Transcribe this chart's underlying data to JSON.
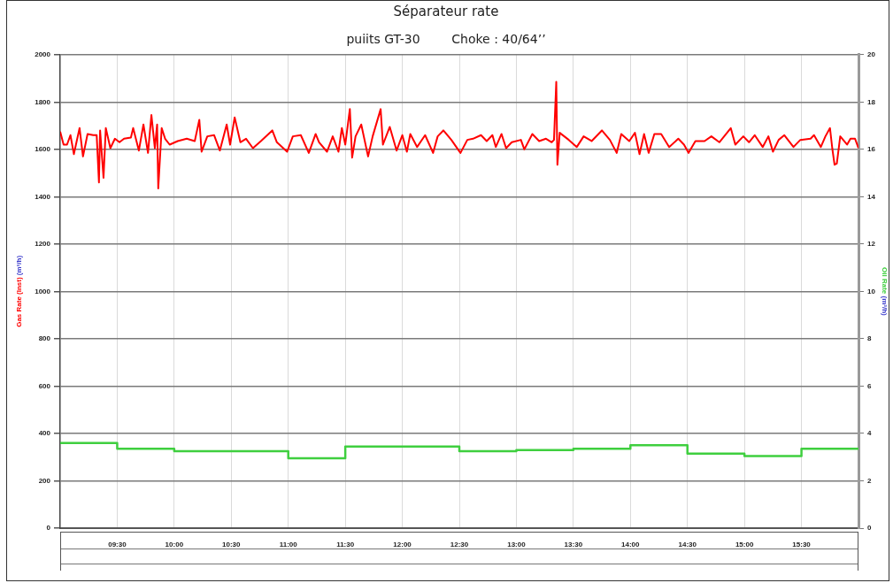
{
  "chart_data": {
    "type": "line",
    "title": "Séparateur rate",
    "subtitle": "puiits GT-30        Choke : 40/64’’",
    "ylabel": "Gas Rate (Inst) (m³/h)",
    "y2label": "Oil Rate (m³/h)",
    "xlim": [
      9,
      16
    ],
    "xticks": [
      {
        "value": 9.5,
        "label": "09:30"
      },
      {
        "value": 10,
        "label": "10:00"
      },
      {
        "value": 10.5,
        "label": "10:30"
      },
      {
        "value": 11,
        "label": "11:00"
      },
      {
        "value": 11.5,
        "label": "11:30"
      },
      {
        "value": 12,
        "label": "12:00"
      },
      {
        "value": 12.5,
        "label": "12:30"
      },
      {
        "value": 13,
        "label": "13:00"
      },
      {
        "value": 13.5,
        "label": "13:30"
      },
      {
        "value": 14,
        "label": "14:00"
      },
      {
        "value": 14.5,
        "label": "14:30"
      },
      {
        "value": 15,
        "label": "15:00"
      },
      {
        "value": 15.5,
        "label": "15:30"
      }
    ],
    "ylim": [
      0,
      2000
    ],
    "yticks": [
      0,
      200,
      400,
      600,
      800,
      1000,
      1200,
      1400,
      1600,
      1800,
      2000
    ],
    "y2lim": [
      0,
      20
    ],
    "y2ticks": [
      0,
      2,
      4,
      6,
      8,
      10,
      12,
      14,
      16,
      18,
      20
    ],
    "grid": true,
    "legend": false,
    "series": [
      {
        "axis": "y",
        "color": "#ff0000",
        "x": [
          9.0,
          9.03,
          9.06,
          9.09,
          9.12,
          9.17,
          9.2,
          9.24,
          9.29,
          9.32,
          9.34,
          9.35,
          9.38,
          9.4,
          9.44,
          9.48,
          9.52,
          9.56,
          9.62,
          9.64,
          9.69,
          9.73,
          9.77,
          9.8,
          9.83,
          9.85,
          9.86,
          9.89,
          9.92,
          9.96,
          10.03,
          10.11,
          10.18,
          10.22,
          10.24,
          10.29,
          10.35,
          10.4,
          10.46,
          10.49,
          10.53,
          10.58,
          10.63,
          10.69,
          10.76,
          10.86,
          10.9,
          10.99,
          11.04,
          11.11,
          11.18,
          11.24,
          11.27,
          11.34,
          11.39,
          11.44,
          11.47,
          11.5,
          11.54,
          11.56,
          11.59,
          11.64,
          11.7,
          11.74,
          11.81,
          11.83,
          11.89,
          11.95,
          12.0,
          12.04,
          12.07,
          12.13,
          12.2,
          12.27,
          12.31,
          12.36,
          12.43,
          12.51,
          12.57,
          12.62,
          12.69,
          12.74,
          12.79,
          12.82,
          12.87,
          12.91,
          12.96,
          13.04,
          13.07,
          13.14,
          13.2,
          13.26,
          13.31,
          13.33,
          13.35,
          13.36,
          13.38,
          13.46,
          13.53,
          13.59,
          13.66,
          13.75,
          13.82,
          13.88,
          13.92,
          13.99,
          14.04,
          14.08,
          14.12,
          14.16,
          14.21,
          14.27,
          14.34,
          14.42,
          14.47,
          14.51,
          14.57,
          14.65,
          14.71,
          14.78,
          14.88,
          14.92,
          14.99,
          15.04,
          15.09,
          15.16,
          15.21,
          15.25,
          15.3,
          15.35,
          15.43,
          15.49,
          15.58,
          15.61,
          15.67,
          15.71,
          15.75,
          15.77,
          15.79,
          15.81,
          15.84,
          15.9,
          15.93,
          15.97,
          16.0
        ],
        "values": [
          1675,
          1620,
          1620,
          1660,
          1580,
          1690,
          1570,
          1665,
          1660,
          1660,
          1460,
          1680,
          1480,
          1690,
          1605,
          1645,
          1630,
          1645,
          1650,
          1690,
          1595,
          1705,
          1585,
          1745,
          1605,
          1705,
          1435,
          1690,
          1645,
          1620,
          1635,
          1645,
          1635,
          1725,
          1590,
          1655,
          1660,
          1595,
          1705,
          1620,
          1735,
          1630,
          1645,
          1605,
          1635,
          1680,
          1630,
          1590,
          1655,
          1660,
          1585,
          1665,
          1630,
          1590,
          1655,
          1590,
          1690,
          1620,
          1770,
          1565,
          1655,
          1705,
          1570,
          1655,
          1770,
          1620,
          1695,
          1595,
          1660,
          1590,
          1665,
          1610,
          1660,
          1585,
          1655,
          1680,
          1640,
          1585,
          1640,
          1645,
          1660,
          1635,
          1660,
          1610,
          1665,
          1605,
          1630,
          1640,
          1600,
          1665,
          1635,
          1645,
          1630,
          1640,
          1885,
          1535,
          1670,
          1640,
          1610,
          1655,
          1635,
          1680,
          1640,
          1585,
          1665,
          1635,
          1670,
          1580,
          1665,
          1585,
          1665,
          1665,
          1610,
          1645,
          1620,
          1585,
          1635,
          1635,
          1655,
          1630,
          1690,
          1620,
          1655,
          1630,
          1660,
          1610,
          1655,
          1590,
          1640,
          1660,
          1610,
          1640,
          1645,
          1660,
          1610,
          1655,
          1690,
          1605,
          1535,
          1540,
          1655,
          1620,
          1645,
          1645,
          1605
        ]
      },
      {
        "type": "step",
        "axis": "y2",
        "color": "#3fcf3f",
        "x": [
          9,
          9.5,
          10,
          11,
          11.5,
          12.5,
          13,
          13.5,
          14,
          14.5,
          15,
          15.5,
          16
        ],
        "values": [
          3.6,
          3.35,
          3.25,
          2.95,
          3.45,
          3.25,
          3.3,
          3.35,
          3.5,
          3.15,
          3.05,
          3.35,
          3.35
        ]
      }
    ]
  }
}
